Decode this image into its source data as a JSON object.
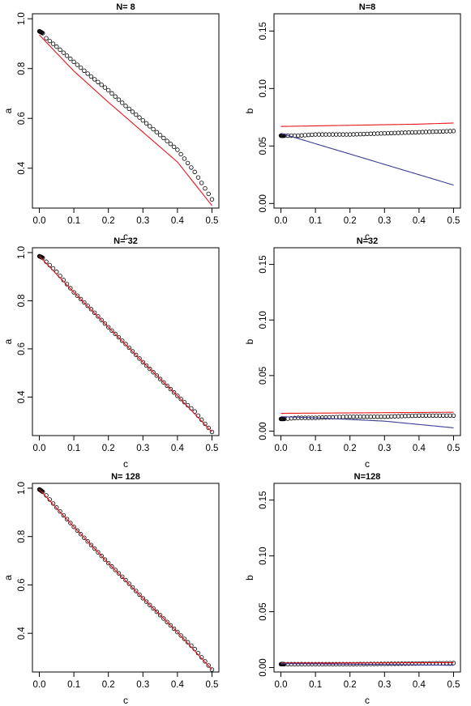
{
  "figure": {
    "background": "#ffffff",
    "colors": {
      "points": "#000000",
      "red_curve": "#e8141b",
      "blue_curve": "#3c3c96"
    }
  },
  "chart_data": [
    {
      "type": "scatter",
      "title": "N= 8",
      "xlabel": "c",
      "ylabel": "a",
      "xlim": [
        -0.02,
        0.52
      ],
      "ylim": [
        0.24,
        1.02
      ],
      "x_ticks": [
        "0.0",
        "0.1",
        "0.2",
        "0.3",
        "0.4",
        "0.5"
      ],
      "y_ticks": [
        "0.4",
        "0.6",
        "0.8",
        "1.0"
      ],
      "series": [
        {
          "kind": "points",
          "color": "#000000",
          "points": [
            [
              0.0,
              0.95
            ],
            [
              0.005,
              0.946
            ],
            [
              0.01,
              0.942
            ],
            [
              0.02,
              0.922
            ],
            [
              0.05,
              0.888
            ],
            [
              0.1,
              0.827
            ],
            [
              0.15,
              0.768
            ],
            [
              0.2,
              0.713
            ],
            [
              0.25,
              0.65
            ],
            [
              0.3,
              0.592
            ],
            [
              0.35,
              0.533
            ],
            [
              0.4,
              0.474
            ],
            [
              0.45,
              0.385
            ],
            [
              0.5,
              0.275
            ]
          ]
        },
        {
          "kind": "line",
          "color": "#e8141b",
          "points": [
            [
              0.0,
              0.935
            ],
            [
              0.1,
              0.79
            ],
            [
              0.2,
              0.665
            ],
            [
              0.3,
              0.545
            ],
            [
              0.4,
              0.425
            ],
            [
              0.5,
              0.25
            ]
          ]
        }
      ]
    },
    {
      "type": "scatter",
      "title": "N=8",
      "xlabel": "c",
      "ylabel": "b",
      "xlim": [
        -0.02,
        0.52
      ],
      "ylim": [
        -0.004,
        0.165
      ],
      "x_ticks": [
        "0.0",
        "0.1",
        "0.2",
        "0.3",
        "0.4",
        "0.5"
      ],
      "y_ticks": [
        "0.00",
        "0.05",
        "0.10",
        "0.15"
      ],
      "series": [
        {
          "kind": "points",
          "color": "#000000",
          "points": [
            [
              0.0,
              0.059
            ],
            [
              0.005,
              0.059
            ],
            [
              0.01,
              0.059
            ],
            [
              0.05,
              0.059
            ],
            [
              0.1,
              0.06
            ],
            [
              0.2,
              0.06
            ],
            [
              0.3,
              0.061
            ],
            [
              0.4,
              0.062
            ],
            [
              0.5,
              0.063
            ]
          ]
        },
        {
          "kind": "line",
          "color": "#e8141b",
          "points": [
            [
              0.0,
              0.067
            ],
            [
              0.1,
              0.0675
            ],
            [
              0.2,
              0.068
            ],
            [
              0.3,
              0.0685
            ],
            [
              0.4,
              0.069
            ],
            [
              0.5,
              0.07
            ]
          ]
        },
        {
          "kind": "line",
          "color": "#3c3c96",
          "points": [
            [
              0.0,
              0.061
            ],
            [
              0.1,
              0.052
            ],
            [
              0.2,
              0.043
            ],
            [
              0.3,
              0.034
            ],
            [
              0.4,
              0.025
            ],
            [
              0.5,
              0.016
            ]
          ]
        }
      ]
    },
    {
      "type": "scatter",
      "title": "N= 32",
      "xlabel": "c",
      "ylabel": "a",
      "xlim": [
        -0.02,
        0.52
      ],
      "ylim": [
        0.24,
        1.02
      ],
      "x_ticks": [
        "0.0",
        "0.1",
        "0.2",
        "0.3",
        "0.4",
        "0.5"
      ],
      "y_ticks": [
        "0.4",
        "0.6",
        "0.8",
        "1.0"
      ],
      "series": [
        {
          "kind": "points",
          "color": "#000000",
          "points": [
            [
              0.0,
              0.985
            ],
            [
              0.005,
              0.982
            ],
            [
              0.01,
              0.978
            ],
            [
              0.02,
              0.962
            ],
            [
              0.05,
              0.92
            ],
            [
              0.1,
              0.835
            ],
            [
              0.15,
              0.765
            ],
            [
              0.2,
              0.69
            ],
            [
              0.25,
              0.62
            ],
            [
              0.3,
              0.545
            ],
            [
              0.35,
              0.475
            ],
            [
              0.4,
              0.405
            ],
            [
              0.45,
              0.34
            ],
            [
              0.5,
              0.255
            ]
          ]
        },
        {
          "kind": "line",
          "color": "#e8141b",
          "points": [
            [
              0.0,
              0.985
            ],
            [
              0.1,
              0.835
            ],
            [
              0.2,
              0.69
            ],
            [
              0.3,
              0.545
            ],
            [
              0.4,
              0.405
            ],
            [
              0.5,
              0.255
            ]
          ]
        }
      ]
    },
    {
      "type": "scatter",
      "title": "N=32",
      "xlabel": "c",
      "ylabel": "b",
      "xlim": [
        -0.02,
        0.52
      ],
      "ylim": [
        -0.004,
        0.165
      ],
      "x_ticks": [
        "0.0",
        "0.1",
        "0.2",
        "0.3",
        "0.4",
        "0.5"
      ],
      "y_ticks": [
        "0.00",
        "0.05",
        "0.10",
        "0.15"
      ],
      "series": [
        {
          "kind": "points",
          "color": "#000000",
          "points": [
            [
              0.0,
              0.011
            ],
            [
              0.005,
              0.011
            ],
            [
              0.01,
              0.011
            ],
            [
              0.05,
              0.012
            ],
            [
              0.1,
              0.012
            ],
            [
              0.2,
              0.013
            ],
            [
              0.3,
              0.013
            ],
            [
              0.4,
              0.014
            ],
            [
              0.5,
              0.014
            ]
          ]
        },
        {
          "kind": "line",
          "color": "#e8141b",
          "points": [
            [
              0.0,
              0.016
            ],
            [
              0.1,
              0.0162
            ],
            [
              0.2,
              0.0164
            ],
            [
              0.3,
              0.0166
            ],
            [
              0.4,
              0.0168
            ],
            [
              0.5,
              0.017
            ]
          ]
        },
        {
          "kind": "line",
          "color": "#3c3c96",
          "points": [
            [
              0.0,
              0.013
            ],
            [
              0.1,
              0.012
            ],
            [
              0.2,
              0.0105
            ],
            [
              0.3,
              0.009
            ],
            [
              0.4,
              0.006
            ],
            [
              0.5,
              0.003
            ]
          ]
        }
      ]
    },
    {
      "type": "scatter",
      "title": "N= 128",
      "xlabel": "c",
      "ylabel": "a",
      "xlim": [
        -0.02,
        0.52
      ],
      "ylim": [
        0.24,
        1.02
      ],
      "x_ticks": [
        "0.0",
        "0.1",
        "0.2",
        "0.3",
        "0.4",
        "0.5"
      ],
      "y_ticks": [
        "0.4",
        "0.6",
        "0.8",
        "1.0"
      ],
      "series": [
        {
          "kind": "points",
          "color": "#000000",
          "points": [
            [
              0.0,
              0.995
            ],
            [
              0.005,
              0.99
            ],
            [
              0.01,
              0.985
            ],
            [
              0.02,
              0.97
            ],
            [
              0.05,
              0.92
            ],
            [
              0.1,
              0.84
            ],
            [
              0.15,
              0.765
            ],
            [
              0.2,
              0.69
            ],
            [
              0.25,
              0.62
            ],
            [
              0.3,
              0.545
            ],
            [
              0.35,
              0.475
            ],
            [
              0.4,
              0.405
            ],
            [
              0.45,
              0.335
            ],
            [
              0.5,
              0.25
            ]
          ]
        },
        {
          "kind": "line",
          "color": "#e8141b",
          "points": [
            [
              0.0,
              0.995
            ],
            [
              0.1,
              0.84
            ],
            [
              0.2,
              0.69
            ],
            [
              0.3,
              0.545
            ],
            [
              0.4,
              0.405
            ],
            [
              0.5,
              0.25
            ]
          ]
        }
      ]
    },
    {
      "type": "scatter",
      "title": "N=128",
      "xlabel": "c",
      "ylabel": "b",
      "xlim": [
        -0.02,
        0.52
      ],
      "ylim": [
        -0.004,
        0.165
      ],
      "x_ticks": [
        "0.0",
        "0.1",
        "0.2",
        "0.3",
        "0.4",
        "0.5"
      ],
      "y_ticks": [
        "0.00",
        "0.05",
        "0.10",
        "0.15"
      ],
      "series": [
        {
          "kind": "points",
          "color": "#000000",
          "points": [
            [
              0.0,
              0.003
            ],
            [
              0.005,
              0.003
            ],
            [
              0.01,
              0.003
            ],
            [
              0.05,
              0.003
            ],
            [
              0.1,
              0.003
            ],
            [
              0.2,
              0.003
            ],
            [
              0.3,
              0.0033
            ],
            [
              0.4,
              0.0036
            ],
            [
              0.5,
              0.004
            ]
          ]
        },
        {
          "kind": "line",
          "color": "#e8141b",
          "points": [
            [
              0.0,
              0.004
            ],
            [
              0.1,
              0.004
            ],
            [
              0.2,
              0.0041
            ],
            [
              0.3,
              0.0042
            ],
            [
              0.4,
              0.0043
            ],
            [
              0.5,
              0.0044
            ]
          ]
        },
        {
          "kind": "line",
          "color": "#3c3c96",
          "points": [
            [
              0.0,
              0.0035
            ],
            [
              0.1,
              0.0033
            ],
            [
              0.2,
              0.003
            ],
            [
              0.3,
              0.0027
            ],
            [
              0.4,
              0.0024
            ],
            [
              0.5,
              0.002
            ]
          ]
        }
      ]
    }
  ]
}
